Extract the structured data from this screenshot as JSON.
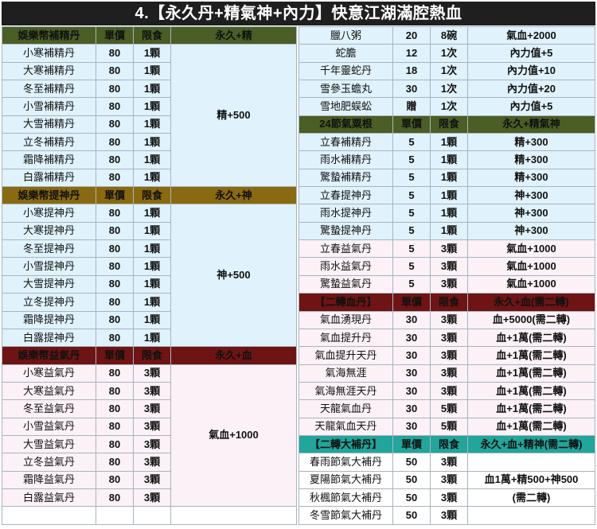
{
  "title": "4.【永久丹+精氣神+內力】快意江湖滿腔熱血",
  "left": {
    "jing": {
      "header": [
        "娛樂幣補精丹",
        "單價",
        "限食",
        "永久+精"
      ],
      "rows": [
        [
          "小寒補精丹",
          "80",
          "1顆"
        ],
        [
          "大寒補精丹",
          "80",
          "1顆"
        ],
        [
          "冬至補精丹",
          "80",
          "1顆"
        ],
        [
          "小雪補精丹",
          "80",
          "1顆"
        ],
        [
          "大雪補精丹",
          "80",
          "1顆"
        ],
        [
          "立冬補精丹",
          "80",
          "1顆"
        ],
        [
          "霜降補精丹",
          "80",
          "1顆"
        ],
        [
          "白露補精丹",
          "80",
          "1顆"
        ]
      ],
      "effect": "精+500"
    },
    "shen": {
      "header": [
        "娛樂幣提神丹",
        "單價",
        "限食",
        "永久+神"
      ],
      "rows": [
        [
          "小寒提神丹",
          "80",
          "1顆"
        ],
        [
          "大寒提神丹",
          "80",
          "1顆"
        ],
        [
          "冬至提神丹",
          "80",
          "1顆"
        ],
        [
          "小雪提神丹",
          "80",
          "1顆"
        ],
        [
          "大雪提神丹",
          "80",
          "1顆"
        ],
        [
          "立冬提神丹",
          "80",
          "1顆"
        ],
        [
          "霜降提神丹",
          "80",
          "1顆"
        ],
        [
          "白露提神丹",
          "80",
          "1顆"
        ]
      ],
      "effect": "神+500"
    },
    "qi": {
      "header": [
        "娛樂幣益氣丹",
        "單價",
        "限食",
        "永久+血"
      ],
      "rows": [
        [
          "小寒益氣丹",
          "80",
          "3顆"
        ],
        [
          "大寒益氣丹",
          "80",
          "3顆"
        ],
        [
          "冬至益氣丹",
          "80",
          "3顆"
        ],
        [
          "小雪益氣丹",
          "80",
          "3顆"
        ],
        [
          "大雪益氣丹",
          "80",
          "3顆"
        ],
        [
          "立冬益氣丹",
          "80",
          "3顆"
        ],
        [
          "霜降益氣丹",
          "80",
          "3顆"
        ],
        [
          "白露益氣丹",
          "80",
          "3顆"
        ]
      ],
      "effect": "氣血+1000"
    }
  },
  "right": {
    "misc": [
      [
        "臘八粥",
        "20",
        "8碗",
        "氣血+2000"
      ],
      [
        "蛇膽",
        "12",
        "1次",
        "內力值+5"
      ],
      [
        "千年靈蛇丹",
        "18",
        "1次",
        "內力值+10"
      ],
      [
        "雪參玉蟾丸",
        "30",
        "1次",
        "內力值+20"
      ],
      [
        "雪地肥蜈蚣",
        "贈",
        "1次",
        "內力值+5"
      ]
    ],
    "jieqi": {
      "header": [
        "24節氣粟根",
        "單價",
        "限食",
        "永久+精氣神"
      ],
      "rows": [
        [
          "立春補精丹",
          "5",
          "1顆",
          "精+300"
        ],
        [
          "雨水補精丹",
          "5",
          "1顆",
          "精+300"
        ],
        [
          "驚蟄補精丹",
          "5",
          "1顆",
          "精+300"
        ],
        [
          "立春提神丹",
          "5",
          "1顆",
          "神+300"
        ],
        [
          "雨水提神丹",
          "5",
          "1顆",
          "神+300"
        ],
        [
          "驚蟄提神丹",
          "5",
          "1顆",
          "神+300"
        ],
        [
          "立春益氣丹",
          "5",
          "3顆",
          "氣血+1000"
        ],
        [
          "雨水益氣丹",
          "5",
          "3顆",
          "氣血+1000"
        ],
        [
          "驚蟄益氣丹",
          "5",
          "3顆",
          "氣血+1000"
        ]
      ]
    },
    "erzhuan_xue": {
      "header": [
        "【二轉血丹】",
        "單價",
        "限食",
        "永久+血(需二轉)"
      ],
      "rows": [
        [
          "氣血湧現丹",
          "30",
          "3顆",
          "血+5000(需二轉)"
        ],
        [
          "氣血提升丹",
          "30",
          "3顆",
          "血+1萬(需二轉)"
        ],
        [
          "氣血提升天丹",
          "30",
          "3顆",
          "血+1萬(需二轉)"
        ],
        [
          "氣海無涯",
          "30",
          "3顆",
          "血+1萬(需二轉)"
        ],
        [
          "氣海無涯天丹",
          "30",
          "3顆",
          "血+1萬(需二轉)"
        ],
        [
          "天龍氣血丹",
          "30",
          "5顆",
          "血+1萬(需二轉)"
        ],
        [
          "天龍氣血天丹",
          "30",
          "5顆",
          "血+1萬(需二轉)"
        ]
      ]
    },
    "erzhuan_da": {
      "header": [
        "【二轉大補丹】",
        "單價",
        "限食",
        "永久+血+精神(需二轉)"
      ],
      "rows": [
        [
          "春雨節氣大補丹",
          "50",
          "3顆"
        ],
        [
          "夏陽節氣大補丹",
          "50",
          "3顆"
        ],
        [
          "秋楓節氣大補丹",
          "50",
          "3顆"
        ],
        [
          "冬雪節氣大補丹",
          "50",
          "3顆"
        ]
      ],
      "effect_line1": "血1萬+精500+神500",
      "effect_line2": "(需二轉)"
    }
  }
}
